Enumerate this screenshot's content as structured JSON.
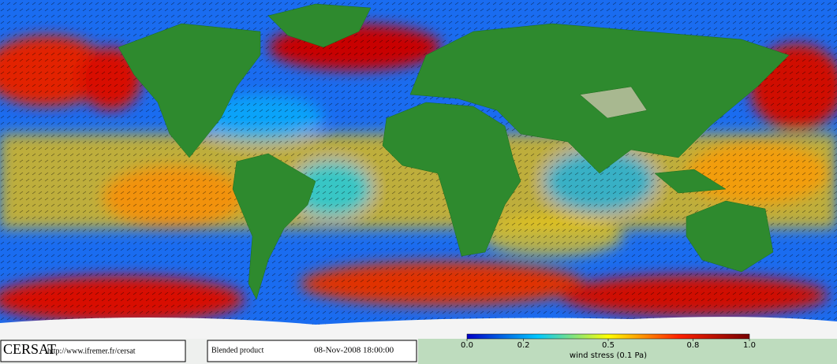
{
  "footer": {
    "logo": "CERSAT",
    "url": "http://www.ifremer.fr/cersat",
    "product": "Blended product",
    "date": "08-Nov-2008 18:00:00"
  },
  "colorbar": {
    "label": "wind stress (0.1 Pa)",
    "lim": [
      0,
      1
    ],
    "ticks": [
      {
        "value": 0,
        "label": "0.0"
      },
      0.2,
      0.5,
      0.8,
      {
        "value": 1,
        "label": "1.0"
      }
    ]
  }
}
